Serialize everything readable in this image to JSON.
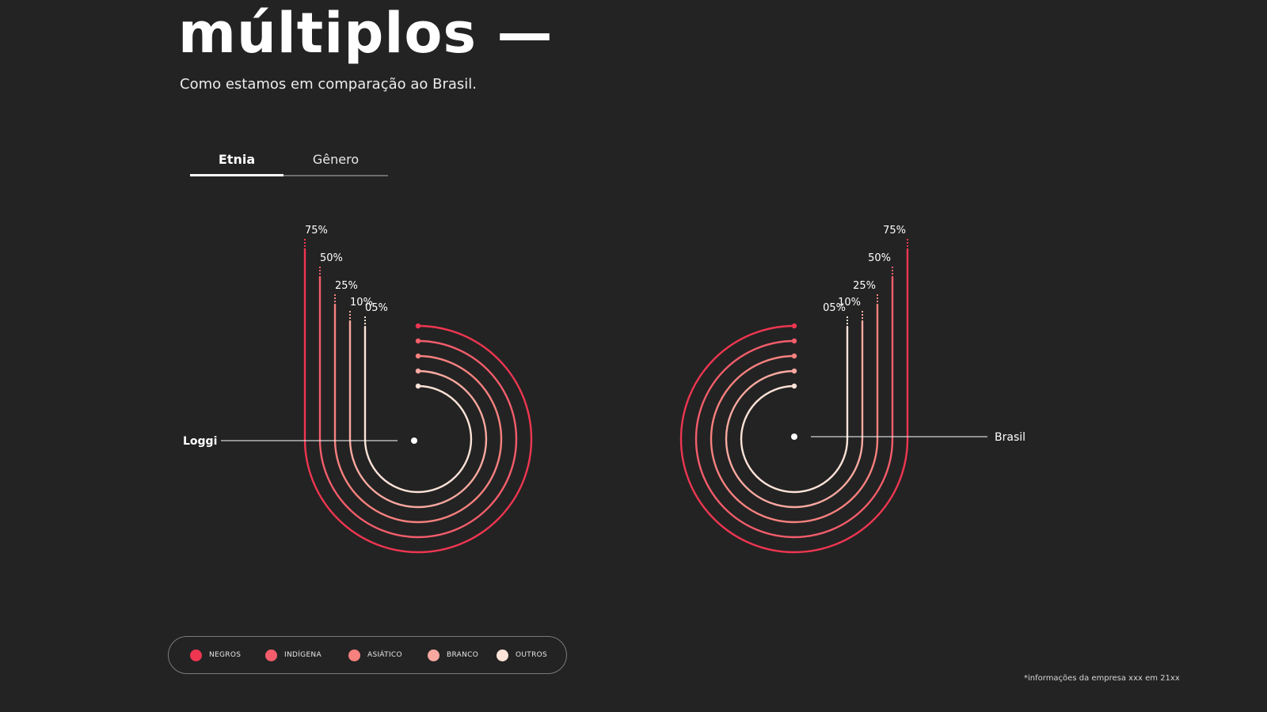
{
  "page": {
    "title": "múltiplos —",
    "subtitle": "Como estamos em comparação ao Brasil.",
    "footnote": "*informações da empresa xxx em 21xx"
  },
  "tabs": [
    {
      "label": "Etnia",
      "active": true
    },
    {
      "label": "Gênero",
      "active": false
    }
  ],
  "colors": {
    "background": "#232323",
    "negros": "#ee3651",
    "indigena": "#f45d6b",
    "asiatico": "#f7817e",
    "branco": "#f9a9a0",
    "outros": "#fde3d8"
  },
  "chart_data": {
    "type": "radial-bar",
    "categories": [
      "NEGROS",
      "INDÍGENA",
      "ASIÁTICO",
      "BRANCO",
      "OUTROS"
    ],
    "scale_labels": [
      "75%",
      "50%",
      "25%",
      "10%",
      "05%"
    ],
    "series": [
      {
        "name": "Loggi",
        "values": [
          75,
          50,
          25,
          10,
          5
        ]
      },
      {
        "name": "Brasil",
        "values": [
          75,
          50,
          25,
          10,
          5
        ]
      }
    ]
  }
}
